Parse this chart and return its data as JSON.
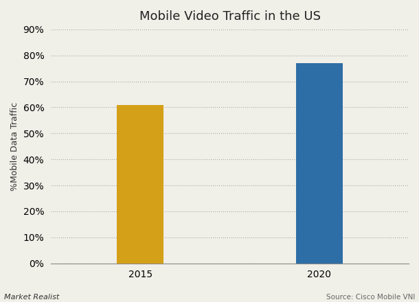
{
  "title": "Mobile Video Traffic in the US",
  "categories": [
    "2015",
    "2020"
  ],
  "values": [
    0.61,
    0.77
  ],
  "bar_colors": [
    "#D4A017",
    "#2E6EA6"
  ],
  "ylabel": "%Mobile Data Traffic",
  "ylim": [
    0,
    0.9
  ],
  "yticks": [
    0.0,
    0.1,
    0.2,
    0.3,
    0.4,
    0.5,
    0.6,
    0.7,
    0.8,
    0.9
  ],
  "grid_color": "#aaaaaa",
  "background_color": "#f0efe8",
  "bar_width": 0.13,
  "x_positions": [
    0.25,
    0.75
  ],
  "xlim": [
    0,
    1
  ],
  "title_fontsize": 13,
  "tick_fontsize": 10,
  "ylabel_fontsize": 9,
  "footer_left": "Market Realist",
  "footer_right": "Source: Cisco Mobile VNI"
}
